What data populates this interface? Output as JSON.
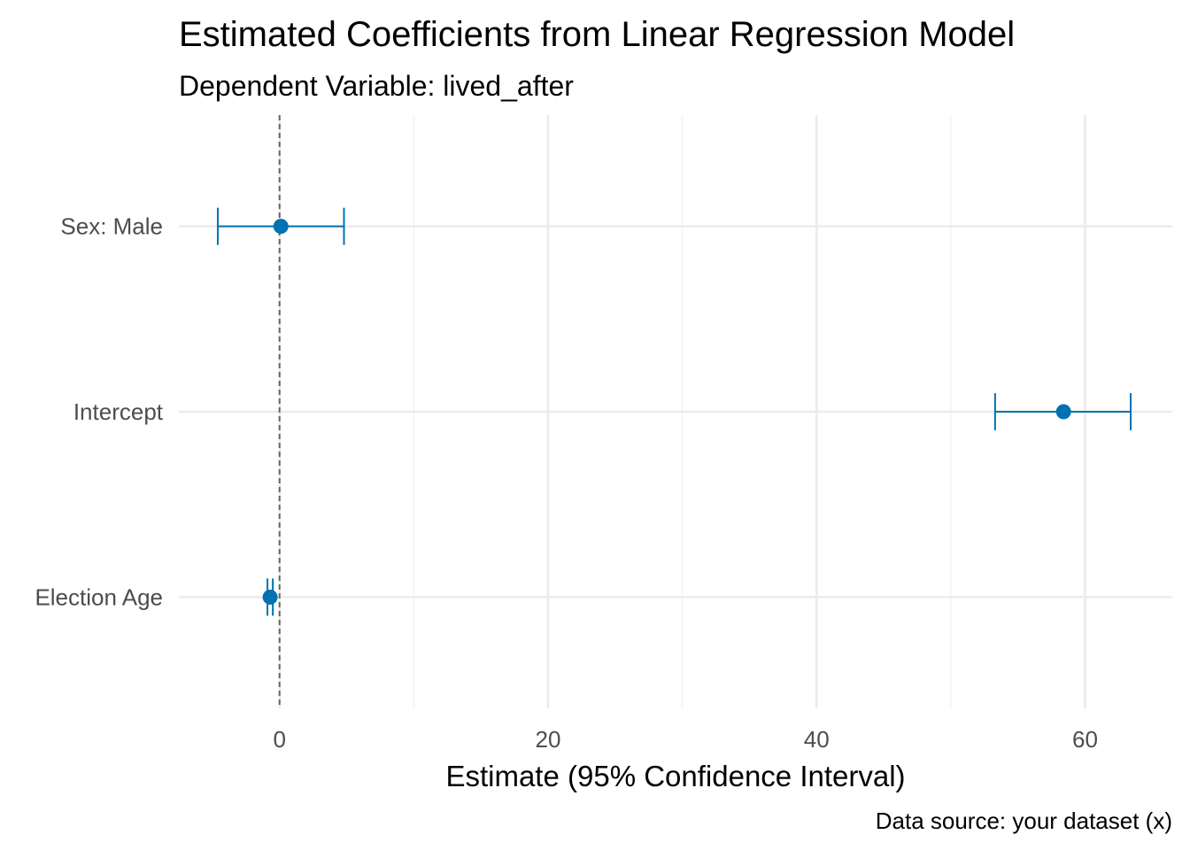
{
  "chart_data": {
    "type": "scatter",
    "title": "Estimated Coefficients from Linear Regression Model",
    "subtitle": "Dependent Variable: lived_after",
    "xlabel": "Estimate (95% Confidence Interval)",
    "ylabel": "",
    "caption": "Data source: your dataset (x)",
    "categories": [
      "Sex: Male",
      "Intercept",
      "Election Age"
    ],
    "estimates": [
      0.1,
      58.4,
      -0.7
    ],
    "ci_low": [
      -4.6,
      53.3,
      -0.9
    ],
    "ci_high": [
      4.8,
      63.4,
      -0.5
    ],
    "xlim": [
      -7.5,
      66.5
    ],
    "xticks": [
      0,
      20,
      40,
      60
    ],
    "xtick_labels": [
      "0",
      "20",
      "40",
      "60"
    ],
    "reference_line": 0,
    "grid": true,
    "point_color": "#0072B2",
    "reference_color": "#666666",
    "grid_color": "#ebebeb"
  }
}
